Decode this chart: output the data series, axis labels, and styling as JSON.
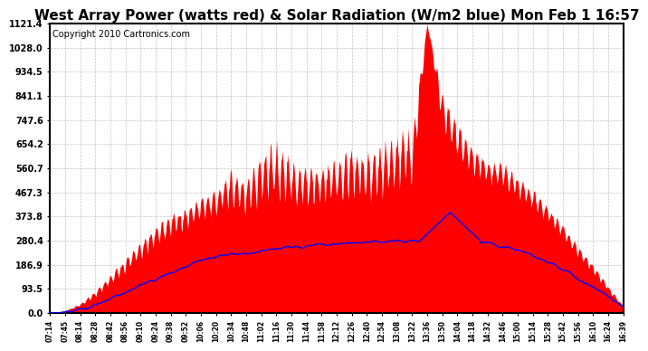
{
  "title": "West Array Power (watts red) & Solar Radiation (W/m2 blue) Mon Feb 1 16:57",
  "copyright": "Copyright 2010 Cartronics.com",
  "ymax": 1121.4,
  "yticks": [
    0.0,
    93.5,
    186.9,
    280.4,
    373.8,
    467.3,
    560.7,
    654.2,
    747.6,
    841.1,
    934.5,
    1028.0,
    1121.4
  ],
  "xtick_labels": [
    "07:14",
    "07:45",
    "08:14",
    "08:28",
    "08:42",
    "08:56",
    "09:10",
    "09:24",
    "09:38",
    "09:52",
    "10:06",
    "10:20",
    "10:34",
    "10:48",
    "11:02",
    "11:16",
    "11:30",
    "11:44",
    "11:58",
    "12:12",
    "12:26",
    "12:40",
    "12:54",
    "13:08",
    "13:22",
    "13:36",
    "13:50",
    "14:04",
    "14:18",
    "14:32",
    "14:46",
    "15:00",
    "15:14",
    "15:28",
    "15:42",
    "15:56",
    "16:10",
    "16:24",
    "16:39"
  ],
  "bg_color": "#ffffff",
  "grid_color": "#aaaaaa",
  "red_color": "#ff0000",
  "blue_color": "#0000ff",
  "title_fontsize": 11,
  "copyright_fontsize": 7,
  "red_base": [
    2,
    8,
    25,
    60,
    100,
    150,
    200,
    250,
    280,
    310,
    340,
    360,
    370,
    360,
    380,
    390,
    380,
    375,
    380,
    385,
    390,
    385,
    400,
    420,
    430,
    1121,
    700,
    560,
    520,
    490,
    460,
    430,
    390,
    340,
    280,
    210,
    150,
    80,
    20
  ],
  "red_spikes": [
    0,
    0,
    10,
    20,
    40,
    50,
    60,
    70,
    80,
    80,
    90,
    100,
    150,
    120,
    200,
    220,
    180,
    160,
    150,
    180,
    200,
    190,
    210,
    220,
    230,
    0,
    120,
    150,
    100,
    80,
    100,
    80,
    70,
    60,
    50,
    40,
    30,
    20,
    5
  ],
  "blue_base": [
    2,
    5,
    15,
    30,
    55,
    80,
    105,
    130,
    155,
    180,
    200,
    215,
    225,
    230,
    240,
    250,
    255,
    260,
    265,
    270,
    272,
    275,
    278,
    280,
    282,
    290,
    310,
    295,
    280,
    270,
    260,
    245,
    225,
    200,
    170,
    135,
    100,
    65,
    25
  ],
  "blue_noise": 15,
  "blue_spike_idx": 26,
  "blue_spike_val": 390
}
